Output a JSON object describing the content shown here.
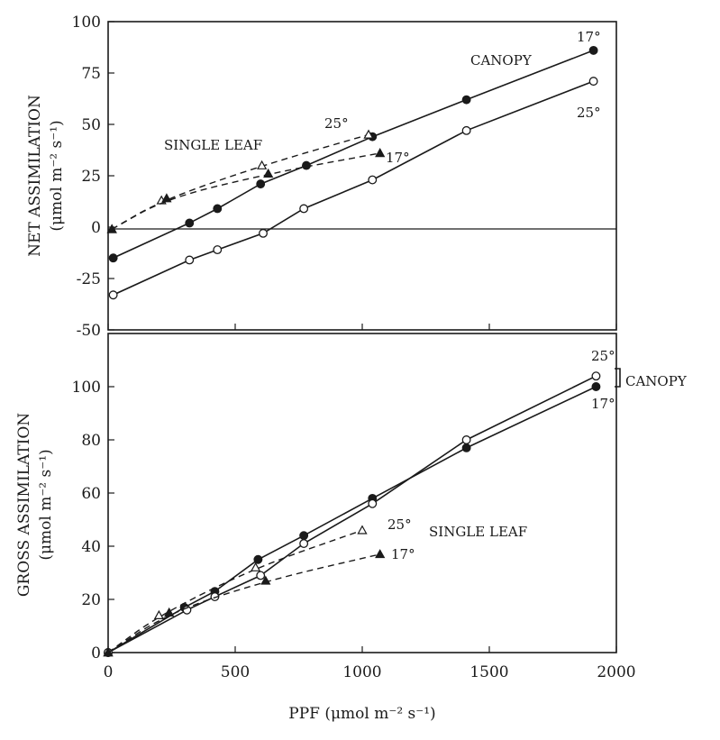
{
  "chart_data": [
    {
      "type": "line",
      "panel": "top",
      "ylabel": "NET ASSIMILATION",
      "ylabel_units": "(μmol m⁻² s⁻¹)",
      "xlim": [
        0,
        2000
      ],
      "ylim": [
        -50,
        100
      ],
      "yticks": [
        -50,
        -25,
        0,
        25,
        50,
        75,
        100
      ],
      "annotations": [
        "CANOPY",
        "SINGLE LEAF",
        "17°",
        "25°",
        "25°",
        "17°"
      ],
      "series": [
        {
          "group": "canopy",
          "temp": "17°",
          "marker": "filled-circle",
          "line": "solid",
          "x": [
            20,
            320,
            430,
            600,
            780,
            1040,
            1410,
            1910
          ],
          "y": [
            -15,
            2,
            9,
            21,
            30,
            44,
            62,
            86
          ]
        },
        {
          "group": "canopy",
          "temp": "25°",
          "marker": "open-circle",
          "line": "solid",
          "x": [
            20,
            320,
            430,
            610,
            770,
            1040,
            1410,
            1910
          ],
          "y": [
            -33,
            -16,
            -11,
            -3,
            9,
            23,
            47,
            71
          ]
        },
        {
          "group": "single-leaf",
          "temp": "25°",
          "marker": "open-triangle",
          "line": "dashed",
          "x": [
            15,
            210,
            605,
            1025
          ],
          "y": [
            -1,
            13,
            30,
            45
          ]
        },
        {
          "group": "single-leaf",
          "temp": "17°",
          "marker": "filled-triangle",
          "line": "dashed",
          "x": [
            15,
            230,
            630,
            1070
          ],
          "y": [
            -1,
            14,
            26,
            36
          ]
        }
      ]
    },
    {
      "type": "line",
      "panel": "bottom",
      "ylabel": "GROSS ASSIMILATION",
      "ylabel_units": "(μmol m⁻² s⁻¹)",
      "xlabel": "PPF (μmol m⁻² s⁻¹)",
      "xlim": [
        0,
        2000
      ],
      "ylim": [
        0,
        120
      ],
      "xticks": [
        0,
        500,
        1000,
        1500,
        2000
      ],
      "yticks": [
        0,
        20,
        40,
        60,
        80,
        100
      ],
      "annotations": [
        "CANOPY",
        "SINGLE LEAF",
        "25°",
        "17°",
        "25°",
        "17°"
      ],
      "series": [
        {
          "group": "canopy",
          "temp": "17°",
          "marker": "filled-circle",
          "line": "solid",
          "x": [
            0,
            300,
            420,
            590,
            770,
            1040,
            1410,
            1920
          ],
          "y": [
            0,
            17,
            23,
            35,
            44,
            58,
            77,
            100
          ]
        },
        {
          "group": "canopy",
          "temp": "25°",
          "marker": "open-circle",
          "line": "solid",
          "x": [
            0,
            310,
            420,
            600,
            770,
            1040,
            1410,
            1920
          ],
          "y": [
            0,
            16,
            21,
            29,
            41,
            56,
            80,
            104
          ]
        },
        {
          "group": "single-leaf",
          "temp": "25°",
          "marker": "open-triangle",
          "line": "dashed",
          "x": [
            0,
            200,
            580,
            1000
          ],
          "y": [
            0,
            14,
            32,
            46
          ]
        },
        {
          "group": "single-leaf",
          "temp": "17°",
          "marker": "filled-triangle",
          "line": "dashed",
          "x": [
            0,
            240,
            620,
            1070
          ],
          "y": [
            0,
            15,
            27,
            37
          ]
        }
      ]
    }
  ]
}
